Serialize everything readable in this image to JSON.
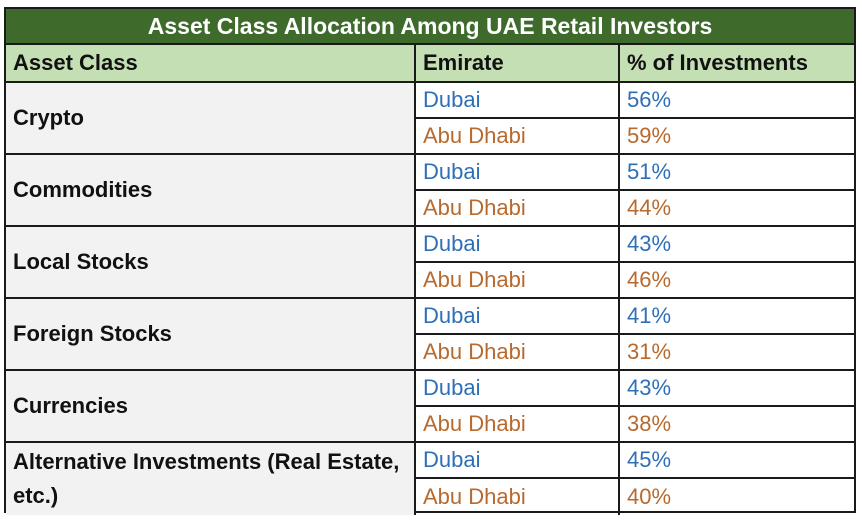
{
  "title": "Asset Class Allocation Among UAE Retail Investors",
  "headers": [
    "Asset Class",
    "Emirate",
    "% of Investments"
  ],
  "colors": {
    "title_bg": "#3e6b2c",
    "header_bg": "#c5dfb4",
    "asset_bg": "#f2f2f2",
    "dubai_text": "#2f6fb7",
    "abu_dhabi_text": "#b8692e"
  },
  "chart_data": {
    "type": "table",
    "title": "Asset Class Allocation Among UAE Retail Investors",
    "columns": [
      "Asset Class",
      "Emirate",
      "% of Investments"
    ],
    "rows": [
      {
        "asset": "Crypto",
        "entries": [
          {
            "emirate": "Dubai",
            "value": "56%"
          },
          {
            "emirate": "Abu Dhabi",
            "value": "59%"
          }
        ]
      },
      {
        "asset": "Commodities",
        "entries": [
          {
            "emirate": "Dubai",
            "value": "51%"
          },
          {
            "emirate": "Abu Dhabi",
            "value": "44%"
          }
        ]
      },
      {
        "asset": "Local Stocks",
        "entries": [
          {
            "emirate": "Dubai",
            "value": "43%"
          },
          {
            "emirate": "Abu Dhabi",
            "value": "46%"
          }
        ]
      },
      {
        "asset": "Foreign Stocks",
        "entries": [
          {
            "emirate": "Dubai",
            "value": "41%"
          },
          {
            "emirate": "Abu Dhabi",
            "value": "31%"
          }
        ]
      },
      {
        "asset": "Currencies",
        "entries": [
          {
            "emirate": "Dubai",
            "value": "43%"
          },
          {
            "emirate": "Abu Dhabi",
            "value": "38%"
          }
        ]
      },
      {
        "asset": "Alternative Investments (Real Estate, etc.)",
        "entries": [
          {
            "emirate": "Dubai",
            "value": "45%"
          },
          {
            "emirate": "Abu Dhabi",
            "value": "40%"
          }
        ]
      }
    ]
  }
}
